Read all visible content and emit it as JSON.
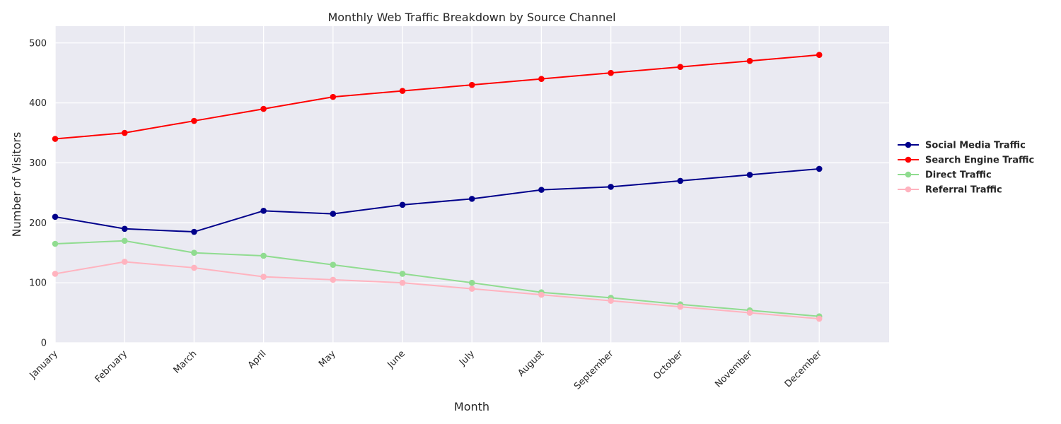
{
  "chart_data": {
    "type": "line",
    "title": "Monthly Web Traffic Breakdown by Source Channel",
    "xlabel": "Month",
    "ylabel": "Number of Visitors",
    "categories": [
      "January",
      "February",
      "March",
      "April",
      "May",
      "June",
      "July",
      "August",
      "September",
      "October",
      "November",
      "December"
    ],
    "ylim": [
      0,
      528
    ],
    "yticks": [
      0,
      100,
      200,
      300,
      400,
      500
    ],
    "grid": true,
    "legend_position": "right",
    "background": "#eaeaf2",
    "series": [
      {
        "name": "Social Media Traffic",
        "color": "#00008b",
        "values": [
          210,
          190,
          185,
          220,
          215,
          230,
          240,
          255,
          260,
          270,
          280,
          290
        ]
      },
      {
        "name": "Search Engine Traffic",
        "color": "#ff0000",
        "values": [
          340,
          350,
          370,
          390,
          410,
          420,
          430,
          440,
          450,
          460,
          470,
          480
        ]
      },
      {
        "name": "Direct Traffic",
        "color": "#90dc90",
        "values": [
          165,
          170,
          150,
          145,
          130,
          115,
          100,
          84,
          75,
          64,
          54,
          44
        ]
      },
      {
        "name": "Referral Traffic",
        "color": "#ffb3bf",
        "values": [
          115,
          135,
          125,
          110,
          105,
          100,
          90,
          80,
          70,
          60,
          50,
          40
        ]
      }
    ]
  }
}
